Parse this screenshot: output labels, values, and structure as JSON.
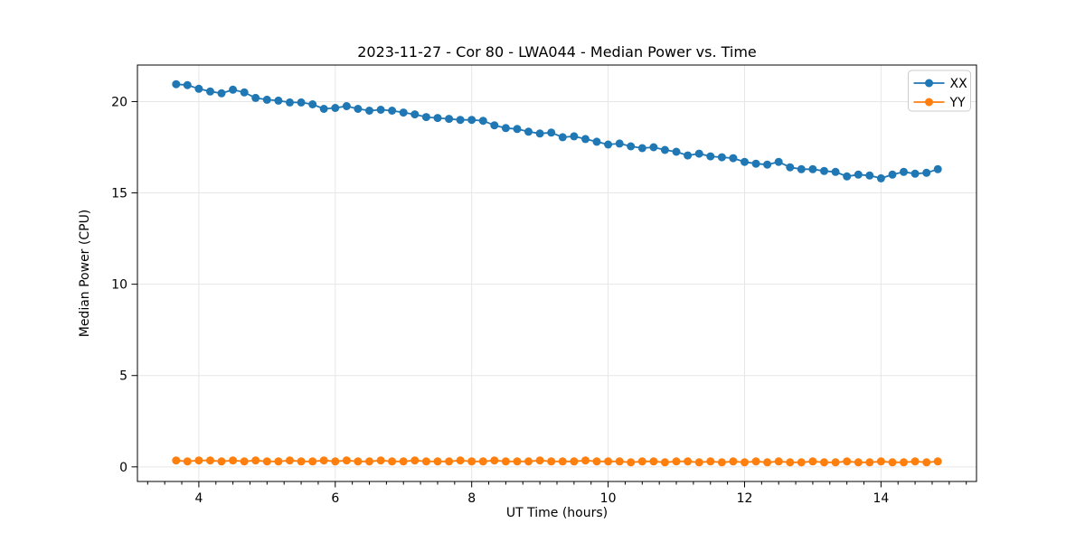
{
  "chart_data": {
    "type": "line",
    "title": "2023-11-27 - Cor 80 - LWA044 - Median Power vs. Time",
    "xlabel": "UT Time (hours)",
    "ylabel": "Median Power (CPU)",
    "xlim": [
      3.1,
      15.4
    ],
    "ylim": [
      -0.8,
      22.0
    ],
    "xticks": [
      4,
      6,
      8,
      10,
      12,
      14
    ],
    "yticks": [
      0,
      5,
      10,
      15,
      20
    ],
    "minor_xtick_step": 0.25,
    "grid": true,
    "legend_position": "upper right",
    "x": [
      3.667,
      3.833,
      4.0,
      4.167,
      4.333,
      4.5,
      4.667,
      4.833,
      5.0,
      5.167,
      5.333,
      5.5,
      5.667,
      5.833,
      6.0,
      6.167,
      6.333,
      6.5,
      6.667,
      6.833,
      7.0,
      7.167,
      7.333,
      7.5,
      7.667,
      7.833,
      8.0,
      8.167,
      8.333,
      8.5,
      8.667,
      8.833,
      9.0,
      9.167,
      9.333,
      9.5,
      9.667,
      9.833,
      10.0,
      10.167,
      10.333,
      10.5,
      10.667,
      10.833,
      11.0,
      11.167,
      11.333,
      11.5,
      11.667,
      11.833,
      12.0,
      12.167,
      12.333,
      12.5,
      12.667,
      12.833,
      13.0,
      13.167,
      13.333,
      13.5,
      13.667,
      13.833,
      14.0,
      14.167,
      14.333,
      14.5,
      14.667,
      14.833
    ],
    "series": [
      {
        "name": "XX",
        "color": "#1f77b4",
        "values": [
          20.95,
          20.9,
          20.7,
          20.55,
          20.45,
          20.65,
          20.5,
          20.2,
          20.1,
          20.05,
          19.95,
          19.95,
          19.85,
          19.6,
          19.65,
          19.75,
          19.6,
          19.5,
          19.55,
          19.5,
          19.4,
          19.3,
          19.15,
          19.1,
          19.05,
          19.0,
          19.0,
          18.95,
          18.7,
          18.55,
          18.5,
          18.35,
          18.25,
          18.3,
          18.05,
          18.1,
          17.95,
          17.8,
          17.65,
          17.7,
          17.55,
          17.45,
          17.5,
          17.35,
          17.25,
          17.05,
          17.15,
          17.0,
          16.95,
          16.9,
          16.7,
          16.6,
          16.55,
          16.7,
          16.4,
          16.3,
          16.3,
          16.2,
          16.15,
          15.9,
          16.0,
          15.95,
          15.8,
          16.0,
          16.15,
          16.05,
          16.1,
          16.3
        ]
      },
      {
        "name": "YY",
        "color": "#ff7f0e",
        "values": [
          0.35,
          0.3,
          0.35,
          0.35,
          0.3,
          0.35,
          0.3,
          0.35,
          0.3,
          0.3,
          0.35,
          0.3,
          0.3,
          0.35,
          0.3,
          0.35,
          0.3,
          0.3,
          0.35,
          0.3,
          0.3,
          0.35,
          0.3,
          0.3,
          0.3,
          0.35,
          0.3,
          0.3,
          0.35,
          0.3,
          0.3,
          0.3,
          0.35,
          0.3,
          0.3,
          0.3,
          0.35,
          0.3,
          0.3,
          0.3,
          0.25,
          0.3,
          0.3,
          0.25,
          0.3,
          0.3,
          0.25,
          0.3,
          0.25,
          0.3,
          0.25,
          0.3,
          0.25,
          0.3,
          0.25,
          0.25,
          0.3,
          0.25,
          0.25,
          0.3,
          0.25,
          0.25,
          0.3,
          0.25,
          0.25,
          0.3,
          0.25,
          0.3
        ]
      }
    ]
  }
}
